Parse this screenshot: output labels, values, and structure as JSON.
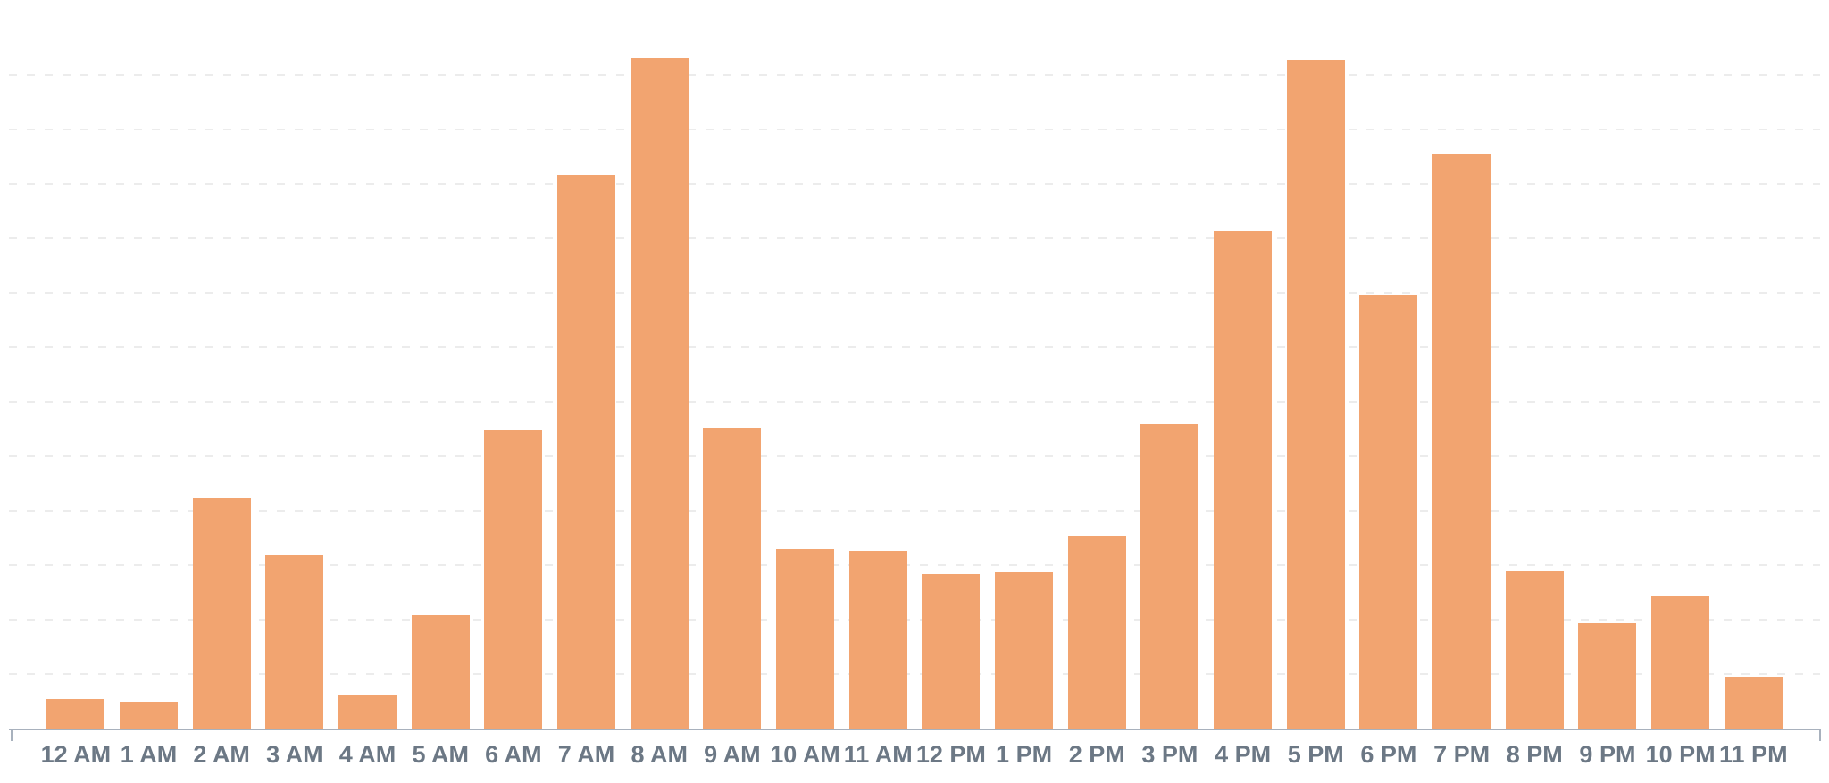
{
  "chart_data": {
    "type": "bar",
    "title": "",
    "xlabel": "",
    "ylabel": "",
    "categories": [
      "12 AM",
      "1 AM",
      "2 AM",
      "3 AM",
      "4 AM",
      "5 AM",
      "6 AM",
      "7 AM",
      "8 AM",
      "9 AM",
      "10 AM",
      "11 AM",
      "12 PM",
      "1 PM",
      "2 PM",
      "3 PM",
      "4 PM",
      "5 PM",
      "6 PM",
      "7 PM",
      "8 PM",
      "9 PM",
      "10 PM",
      "11 PM"
    ],
    "values": [
      0.54,
      0.49,
      4.23,
      3.18,
      0.62,
      2.08,
      5.48,
      10.16,
      12.31,
      5.52,
      3.3,
      3.26,
      2.84,
      2.87,
      3.54,
      5.59,
      9.13,
      12.28,
      7.97,
      10.56,
      2.9,
      1.93,
      2.43,
      0.95
    ],
    "value_unit": "gridline-units (y axis unlabeled; 1.0 = one gridline step)",
    "ylim": [
      0,
      13.39
    ],
    "gridline_interval": 1,
    "gridline_count": 12,
    "y_axis_labels_visible": false,
    "grid": "dashed-horizontal",
    "legend": "none",
    "colors": {
      "bar": "#F2A470",
      "axis_line": "#A8B1BD",
      "tick_label": "#6C7885",
      "gridline": "#ECECEC",
      "background": "#FFFFFF"
    }
  }
}
